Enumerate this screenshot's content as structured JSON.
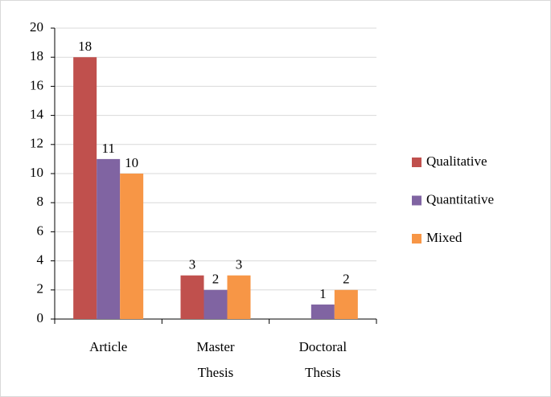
{
  "chart_data": {
    "type": "bar",
    "categories": [
      "Article",
      "Master Thesis",
      "Doctoral Thesis"
    ],
    "series": [
      {
        "name": "Qualitative",
        "color": "#c0504d",
        "values": [
          18,
          3,
          null
        ]
      },
      {
        "name": "Quantitative",
        "color": "#8064a2",
        "values": [
          11,
          2,
          1
        ]
      },
      {
        "name": "Mixed",
        "color": "#f79646",
        "values": [
          10,
          3,
          2
        ]
      }
    ],
    "ylim": [
      0,
      20
    ],
    "yticks": [
      0,
      2,
      4,
      6,
      8,
      10,
      12,
      14,
      16,
      18,
      20
    ],
    "grid": true,
    "legend": "right"
  }
}
